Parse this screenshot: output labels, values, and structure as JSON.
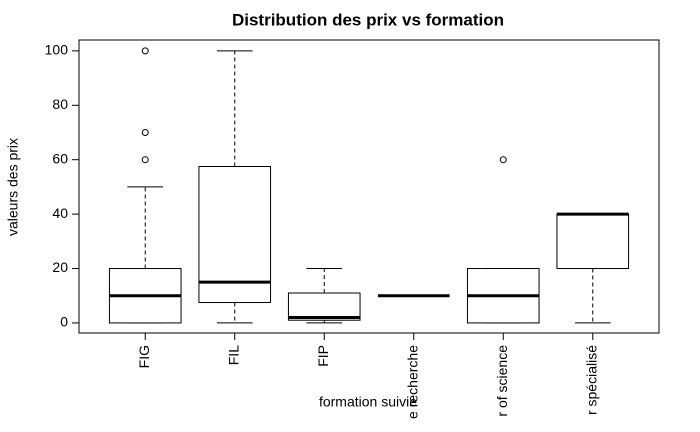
{
  "chart_data": {
    "type": "box",
    "title": "Distribution des prix vs formation",
    "x_label": "formation suivie",
    "y_label": "valeurs des prix",
    "categories": [
      "FIG",
      "FIL",
      "FIP",
      "e recherche",
      "r of science",
      "r spécialisé"
    ],
    "boxes": [
      {
        "min": 0,
        "q1": 0,
        "median": 10,
        "q3": 20,
        "max": 50,
        "outliers": [
          60,
          70,
          100
        ]
      },
      {
        "min": 0,
        "q1": 7.5,
        "median": 15,
        "q3": 57.5,
        "max": 100,
        "outliers": []
      },
      {
        "min": 0,
        "q1": 1,
        "median": 2,
        "q3": 11,
        "max": 20,
        "outliers": []
      },
      {
        "min": 10,
        "q1": 10,
        "median": 10,
        "q3": 10,
        "max": 10,
        "outliers": []
      },
      {
        "min": 0,
        "q1": 0,
        "median": 10,
        "q3": 20,
        "max": 20,
        "outliers": [
          60
        ]
      },
      {
        "min": 0,
        "q1": 20,
        "median": 40,
        "q3": 40,
        "max": 40,
        "outliers": []
      }
    ],
    "color": "#000000",
    "ylim": [
      -3.7,
      104
    ],
    "yticks": [
      0,
      20,
      40,
      60,
      80,
      100
    ]
  }
}
